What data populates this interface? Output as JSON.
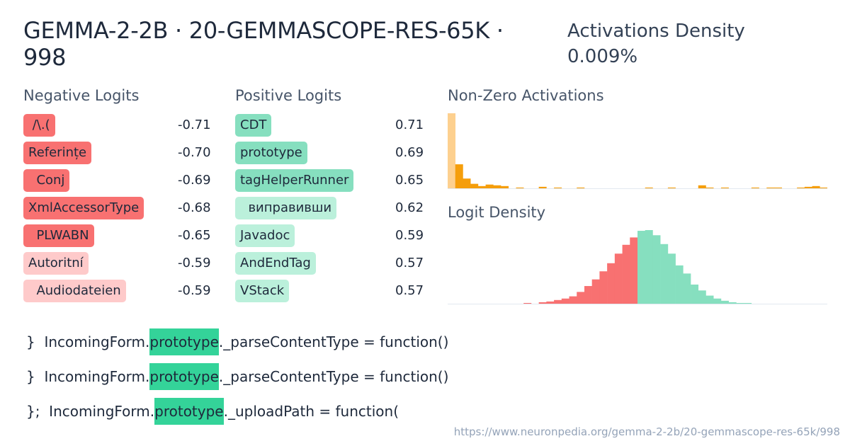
{
  "header": {
    "title": "GEMMA-2-2B · 20-GEMMASCOPE-RES-65K · 998",
    "density_label": "Activations Density",
    "density_value": "0.009%"
  },
  "negative": {
    "heading": "Negative Logits",
    "items": [
      {
        "token": " /\\.(",
        "value": "-0.71",
        "color": "#f87171"
      },
      {
        "token": "Referințe",
        "value": "-0.70",
        "color": "#f87171"
      },
      {
        "token": "  Conj",
        "value": "-0.69",
        "color": "#f87171"
      },
      {
        "token": "XmlAccessorType",
        "value": "-0.68",
        "color": "#f87171"
      },
      {
        "token": "  PLWABN",
        "value": "-0.65",
        "color": "#f87171"
      },
      {
        "token": "Autoritní",
        "value": "-0.59",
        "color": "#fecaca"
      },
      {
        "token": "  Audiodateien",
        "value": "-0.59",
        "color": "#fecaca"
      }
    ]
  },
  "positive": {
    "heading": "Positive Logits",
    "items": [
      {
        "token": "CDT",
        "value": "0.71",
        "color": "#86dfbf"
      },
      {
        "token": "prototype",
        "value": "0.69",
        "color": "#86dfbf"
      },
      {
        "token": "tagHelperRunner",
        "value": "0.65",
        "color": "#86dfbf"
      },
      {
        "token": "  виправивши",
        "value": "0.62",
        "color": "#bbf0db"
      },
      {
        "token": "Javadoc",
        "value": "0.59",
        "color": "#bbf0db"
      },
      {
        "token": "AndEndTag",
        "value": "0.57",
        "color": "#bbf0db"
      },
      {
        "token": "VStack",
        "value": "0.57",
        "color": "#bbf0db"
      }
    ]
  },
  "charts": {
    "activations_title": "Non-Zero Activations",
    "logit_title": "Logit Density"
  },
  "chart_data": [
    {
      "type": "bar",
      "title": "Non-Zero Activations",
      "bins": 50,
      "values": [
        100,
        32,
        13,
        6,
        3,
        5,
        4,
        3,
        0,
        1,
        0,
        0,
        2,
        0,
        1,
        0,
        0,
        1,
        0,
        0,
        0,
        0,
        0,
        0,
        0,
        0,
        1,
        0,
        0,
        1,
        0,
        0,
        0,
        4,
        1,
        0,
        1,
        0,
        0,
        0,
        1,
        0,
        1,
        1,
        0,
        0,
        1,
        2,
        3,
        1
      ],
      "colors": {
        "first": "#fdd08f",
        "rest": "#f59e0b"
      }
    },
    {
      "type": "bar",
      "title": "Logit Density",
      "bins": 50,
      "values": [
        0,
        0,
        0,
        0,
        0,
        0,
        0,
        0,
        0,
        0,
        1,
        0,
        2,
        3,
        5,
        7,
        10,
        16,
        24,
        33,
        44,
        55,
        68,
        80,
        90,
        99,
        100,
        93,
        81,
        68,
        52,
        41,
        26,
        18,
        11,
        7,
        4,
        2,
        1,
        1,
        0,
        0,
        0,
        0,
        0,
        0,
        0,
        0,
        0,
        0
      ],
      "split_index": 25,
      "colors": {
        "negative": "#f87171",
        "positive": "#86dfbf"
      }
    }
  ],
  "examples": [
    {
      "prefix": "}  IncomingForm.",
      "highlight": "prototype",
      "suffix": "._parseContentType = function()"
    },
    {
      "prefix": "}  IncomingForm.",
      "highlight": "prototype",
      "suffix": "._parseContentType = function()"
    },
    {
      "prefix": "};  IncomingForm.",
      "highlight": "prototype",
      "suffix": "._uploadPath = function("
    }
  ],
  "footer": {
    "url": "https://www.neuronpedia.org/gemma-2-2b/20-gemmascope-res-65k/998"
  }
}
